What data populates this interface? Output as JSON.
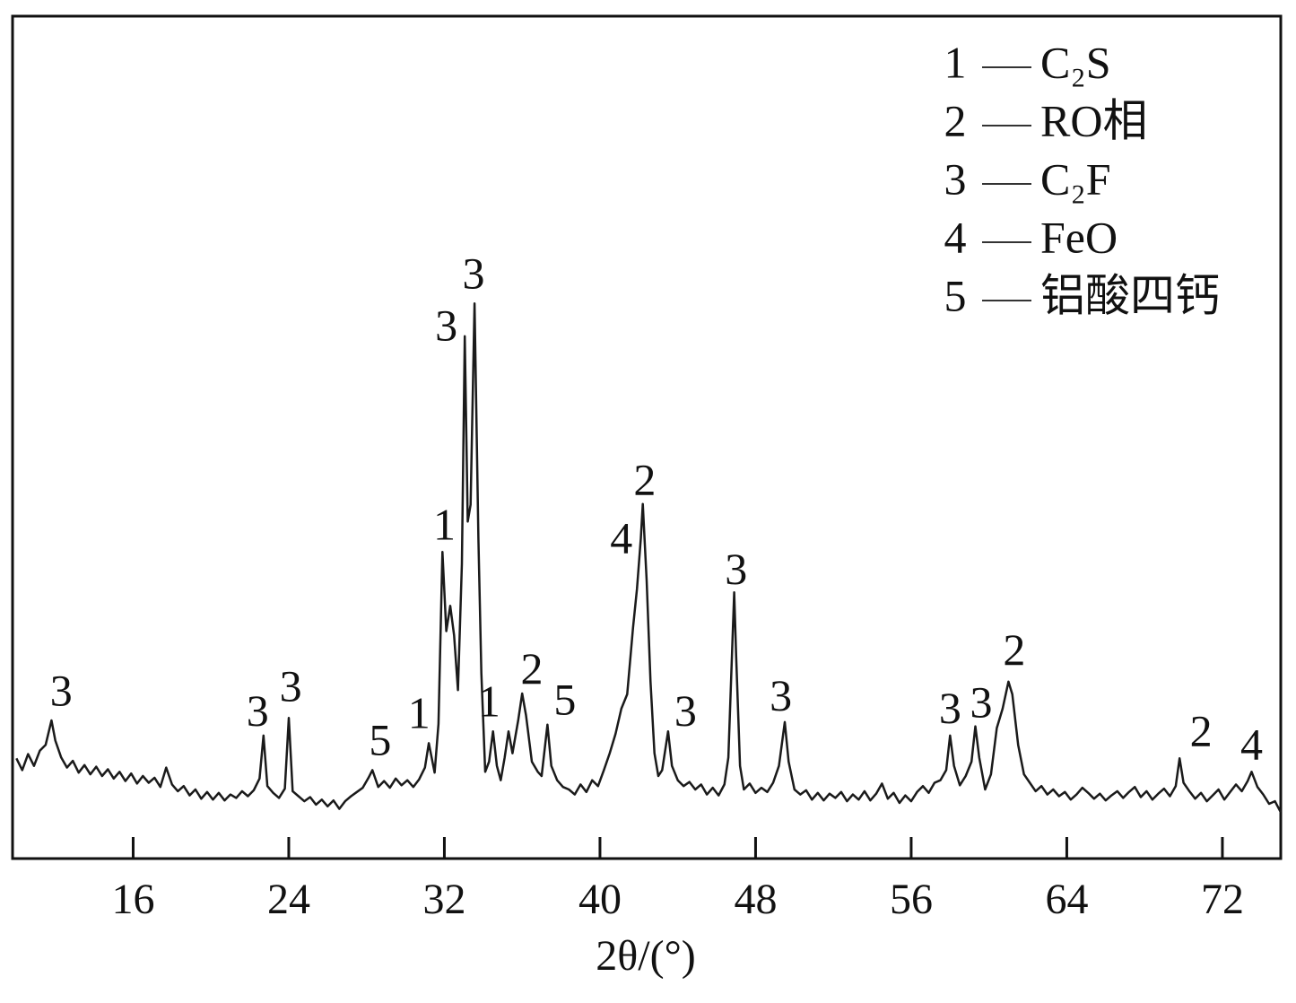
{
  "chart_data": {
    "type": "line",
    "xlabel": "2θ/(°)",
    "color": "#1a1a1a",
    "xlim": [
      9.8,
      75
    ],
    "ylim": [
      0,
      100
    ],
    "xticks": [
      16,
      24,
      32,
      40,
      48,
      56,
      64,
      72
    ],
    "legend_position": "upper right",
    "legend": [
      {
        "number": "1",
        "name": "C₂S"
      },
      {
        "number": "2",
        "name": "RO相"
      },
      {
        "number": "3",
        "name": "C₂F"
      },
      {
        "number": "4",
        "name": "FeO"
      },
      {
        "number": "5",
        "name": "铝酸四钙"
      }
    ],
    "x": [
      10.0,
      10.3,
      10.6,
      10.9,
      11.2,
      11.5,
      11.8,
      12.0,
      12.3,
      12.6,
      12.9,
      13.2,
      13.5,
      13.8,
      14.1,
      14.4,
      14.7,
      15.0,
      15.3,
      15.6,
      15.9,
      16.2,
      16.5,
      16.8,
      17.1,
      17.4,
      17.7,
      18.0,
      18.3,
      18.6,
      18.9,
      19.2,
      19.5,
      19.8,
      20.1,
      20.4,
      20.7,
      21.0,
      21.3,
      21.6,
      21.9,
      22.2,
      22.5,
      22.7,
      22.9,
      23.2,
      23.5,
      23.8,
      24.0,
      24.2,
      24.5,
      24.8,
      25.1,
      25.4,
      25.7,
      26.0,
      26.3,
      26.6,
      26.9,
      27.2,
      27.5,
      27.8,
      28.1,
      28.3,
      28.6,
      28.9,
      29.2,
      29.5,
      29.8,
      30.1,
      30.4,
      30.7,
      31.0,
      31.2,
      31.5,
      31.7,
      31.9,
      32.1,
      32.3,
      32.5,
      32.7,
      32.9,
      33.05,
      33.2,
      33.35,
      33.55,
      33.75,
      33.9,
      34.1,
      34.3,
      34.5,
      34.7,
      34.9,
      35.1,
      35.3,
      35.5,
      35.8,
      36.0,
      36.2,
      36.5,
      36.8,
      37.0,
      37.3,
      37.5,
      37.8,
      38.1,
      38.4,
      38.7,
      39.0,
      39.3,
      39.6,
      39.9,
      40.2,
      40.5,
      40.8,
      41.1,
      41.4,
      41.7,
      41.9,
      42.1,
      42.2,
      42.4,
      42.6,
      42.8,
      43.0,
      43.2,
      43.5,
      43.7,
      44.0,
      44.3,
      44.6,
      44.9,
      45.2,
      45.5,
      45.8,
      46.1,
      46.4,
      46.6,
      46.8,
      46.9,
      47.0,
      47.2,
      47.4,
      47.7,
      48.0,
      48.3,
      48.6,
      48.9,
      49.2,
      49.5,
      49.7,
      50.0,
      50.3,
      50.6,
      50.9,
      51.2,
      51.5,
      51.8,
      52.1,
      52.4,
      52.7,
      53.0,
      53.3,
      53.6,
      53.9,
      54.2,
      54.5,
      54.8,
      55.1,
      55.4,
      55.7,
      56.0,
      56.3,
      56.6,
      56.9,
      57.2,
      57.5,
      57.8,
      58.0,
      58.2,
      58.5,
      58.8,
      59.1,
      59.3,
      59.5,
      59.8,
      60.1,
      60.4,
      60.7,
      61.0,
      61.2,
      61.5,
      61.8,
      62.1,
      62.4,
      62.7,
      63.0,
      63.3,
      63.6,
      63.9,
      64.2,
      64.5,
      64.8,
      65.1,
      65.4,
      65.7,
      66.0,
      66.3,
      66.6,
      66.9,
      67.2,
      67.5,
      67.8,
      68.1,
      68.4,
      68.7,
      69.0,
      69.3,
      69.6,
      69.8,
      70.0,
      70.3,
      70.6,
      70.9,
      71.2,
      71.5,
      71.8,
      72.1,
      72.4,
      72.7,
      73.0,
      73.3,
      73.5,
      73.8,
      74.1,
      74.4,
      74.7,
      75.0
    ],
    "values": [
      11.9,
      10.5,
      12.4,
      11.0,
      12.8,
      13.5,
      16.4,
      14.0,
      12.0,
      10.8,
      11.6,
      10.2,
      11.1,
      10.0,
      10.9,
      9.8,
      10.6,
      9.5,
      10.3,
      9.2,
      10.1,
      8.9,
      9.8,
      9.0,
      9.6,
      8.5,
      10.8,
      8.8,
      8.0,
      8.6,
      7.5,
      8.2,
      7.1,
      7.9,
      7.0,
      7.8,
      6.9,
      7.6,
      7.2,
      8.0,
      7.4,
      8.1,
      9.5,
      14.6,
      8.6,
      7.8,
      7.2,
      8.3,
      16.7,
      8.0,
      7.4,
      6.8,
      7.3,
      6.4,
      7.0,
      6.2,
      6.9,
      5.9,
      6.8,
      7.4,
      7.9,
      8.4,
      9.6,
      10.5,
      8.5,
      9.2,
      8.4,
      9.5,
      8.7,
      9.3,
      8.5,
      9.4,
      10.8,
      13.7,
      10.2,
      16.0,
      36.4,
      27.0,
      30.0,
      26.5,
      20.0,
      35.0,
      62.0,
      40.0,
      42.0,
      65.9,
      38.0,
      22.0,
      10.3,
      11.5,
      15.1,
      11.0,
      9.3,
      12.0,
      15.1,
      12.5,
      16.5,
      19.6,
      17.0,
      11.5,
      10.3,
      9.8,
      15.9,
      11.0,
      9.3,
      8.5,
      8.2,
      7.6,
      8.8,
      7.9,
      9.3,
      8.6,
      10.5,
      12.5,
      14.8,
      17.8,
      19.5,
      27.4,
      32.0,
      38.0,
      42.1,
      33.0,
      21.0,
      12.5,
      9.8,
      10.5,
      15.1,
      11.0,
      9.3,
      8.6,
      9.1,
      8.2,
      8.8,
      7.6,
      8.4,
      7.5,
      8.8,
      12.0,
      25.0,
      31.6,
      24.0,
      11.0,
      8.2,
      8.9,
      7.8,
      8.4,
      7.9,
      9.0,
      11.0,
      16.2,
      11.5,
      8.2,
      7.6,
      8.1,
      7.0,
      7.8,
      6.9,
      7.7,
      7.2,
      7.9,
      6.8,
      7.6,
      7.0,
      8.0,
      6.9,
      7.7,
      8.9,
      7.1,
      7.8,
      6.6,
      7.5,
      6.8,
      7.9,
      8.6,
      7.8,
      9.0,
      9.3,
      10.5,
      14.6,
      11.0,
      8.7,
      9.8,
      11.5,
      15.7,
      12.0,
      8.2,
      10.0,
      15.5,
      17.8,
      21.0,
      19.5,
      13.5,
      10.0,
      9.0,
      8.0,
      8.6,
      7.6,
      8.2,
      7.4,
      7.9,
      7.0,
      7.6,
      8.4,
      7.8,
      7.1,
      7.7,
      6.9,
      7.5,
      8.0,
      7.2,
      7.9,
      8.5,
      7.3,
      8.0,
      7.0,
      7.7,
      8.3,
      7.4,
      8.6,
      11.9,
      9.0,
      8.0,
      7.1,
      7.8,
      6.8,
      7.5,
      8.2,
      7.0,
      7.9,
      8.8,
      8.0,
      9.2,
      10.3,
      8.5,
      7.6,
      6.5,
      6.8,
      5.5
    ],
    "annotations": [
      {
        "text": "3",
        "x": 12.3,
        "y": 19.4
      },
      {
        "text": "3",
        "x": 22.4,
        "y": 17.0
      },
      {
        "text": "3",
        "x": 24.1,
        "y": 19.9
      },
      {
        "text": "5",
        "x": 28.7,
        "y": 13.5
      },
      {
        "text": "1",
        "x": 30.7,
        "y": 16.7
      },
      {
        "text": "1",
        "x": 32.0,
        "y": 39.1
      },
      {
        "text": "3",
        "x": 32.1,
        "y": 62.7
      },
      {
        "text": "3",
        "x": 33.5,
        "y": 68.9
      },
      {
        "text": "1",
        "x": 34.3,
        "y": 18.1
      },
      {
        "text": "2",
        "x": 36.5,
        "y": 22.0
      },
      {
        "text": "5",
        "x": 38.2,
        "y": 18.3
      },
      {
        "text": "4",
        "x": 41.1,
        "y": 37.5
      },
      {
        "text": "2",
        "x": 42.3,
        "y": 44.4
      },
      {
        "text": "3",
        "x": 44.4,
        "y": 17.0
      },
      {
        "text": "3",
        "x": 47.0,
        "y": 33.8
      },
      {
        "text": "3",
        "x": 49.3,
        "y": 18.8
      },
      {
        "text": "3",
        "x": 58.0,
        "y": 17.3
      },
      {
        "text": "3",
        "x": 59.6,
        "y": 18.0
      },
      {
        "text": "2",
        "x": 61.3,
        "y": 24.2
      },
      {
        "text": "2",
        "x": 70.9,
        "y": 14.6
      },
      {
        "text": "4",
        "x": 73.5,
        "y": 13.0
      }
    ]
  }
}
